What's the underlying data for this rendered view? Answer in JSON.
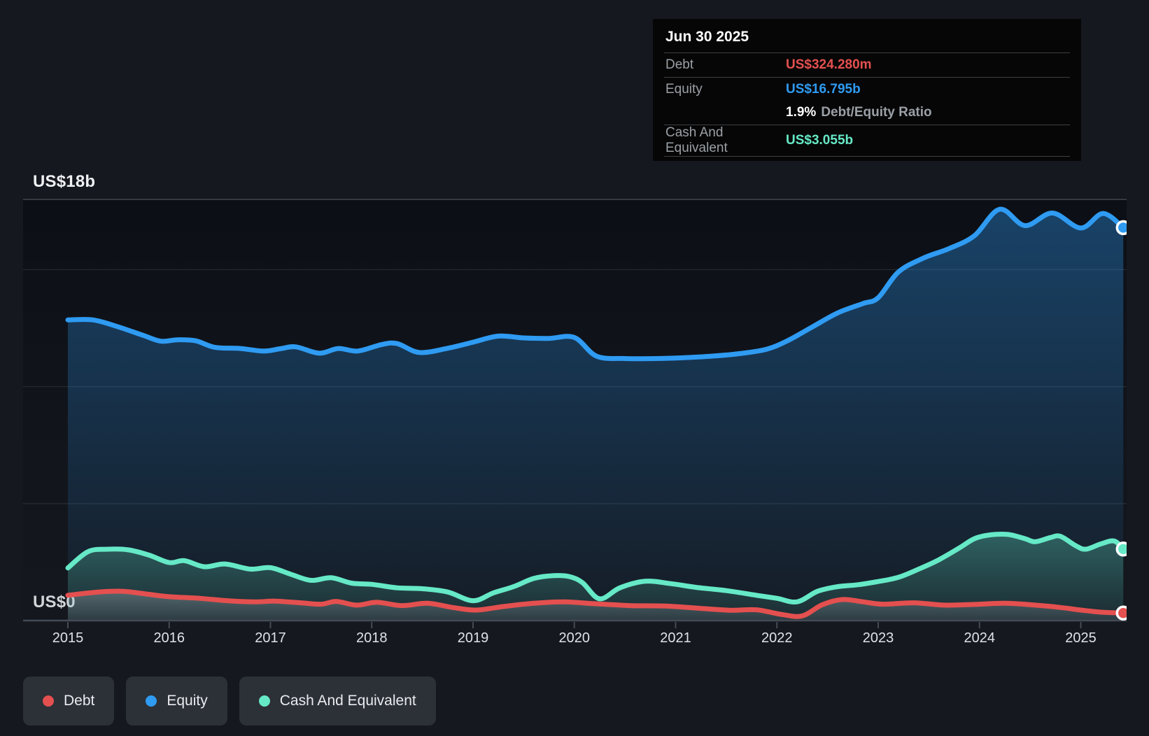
{
  "colors": {
    "debt": "#e4504f",
    "equity": "#2f9bf2",
    "cash": "#66e9c6",
    "page_bg": "#15181e",
    "tooltip_bg": "#060606",
    "grid_major": "#3e444c",
    "grid_minor": "#242a32",
    "axis_line": "#454b54",
    "label_gray": "#9aa0a6",
    "text_light": "#eef0f2"
  },
  "tooltip": {
    "date": "Jun 30 2025",
    "debt_label": "Debt",
    "debt_value": "US$324.280m",
    "equity_label": "Equity",
    "equity_value": "US$16.795b",
    "ratio_value": "1.9%",
    "ratio_label": "Debt/Equity Ratio",
    "cash_label": "Cash And Equivalent",
    "cash_value": "US$3.055b"
  },
  "axis": {
    "y_top_label": "US$18b",
    "y_zero_label": "US$0",
    "x_labels": [
      "2015",
      "2016",
      "2017",
      "2018",
      "2019",
      "2020",
      "2021",
      "2022",
      "2023",
      "2024",
      "2025"
    ]
  },
  "legend": [
    {
      "label": "Debt",
      "series": "debt"
    },
    {
      "label": "Equity",
      "series": "equity"
    },
    {
      "label": "Cash And Equivalent",
      "series": "cash"
    }
  ],
  "chart_data": {
    "type": "area",
    "x_unit": "fractional_year",
    "x_range": [
      2015.0,
      2025.42
    ],
    "ylabel": "US$ billions",
    "ylim": [
      0,
      18
    ],
    "gridlines_billions": [
      5,
      10,
      15
    ],
    "top_gridline_billions": 18,
    "grid": "horizontal-only",
    "legend_position": "bottom-left",
    "series": [
      {
        "name": "Equity",
        "color_key": "equity",
        "end_label": "US$16.795b",
        "points": [
          [
            2015.0,
            12.85
          ],
          [
            2015.25,
            12.85
          ],
          [
            2015.5,
            12.55
          ],
          [
            2015.75,
            12.18
          ],
          [
            2015.92,
            11.94
          ],
          [
            2016.08,
            12.0
          ],
          [
            2016.26,
            11.96
          ],
          [
            2016.45,
            11.68
          ],
          [
            2016.7,
            11.63
          ],
          [
            2016.93,
            11.52
          ],
          [
            2017.1,
            11.62
          ],
          [
            2017.25,
            11.7
          ],
          [
            2017.48,
            11.43
          ],
          [
            2017.67,
            11.63
          ],
          [
            2017.86,
            11.52
          ],
          [
            2018.1,
            11.8
          ],
          [
            2018.25,
            11.84
          ],
          [
            2018.47,
            11.46
          ],
          [
            2018.75,
            11.64
          ],
          [
            2019.0,
            11.9
          ],
          [
            2019.25,
            12.16
          ],
          [
            2019.5,
            12.08
          ],
          [
            2019.75,
            12.06
          ],
          [
            2020.0,
            12.1
          ],
          [
            2020.22,
            11.3
          ],
          [
            2020.5,
            11.2
          ],
          [
            2020.8,
            11.2
          ],
          [
            2021.05,
            11.23
          ],
          [
            2021.35,
            11.3
          ],
          [
            2021.65,
            11.42
          ],
          [
            2021.9,
            11.6
          ],
          [
            2022.1,
            11.95
          ],
          [
            2022.35,
            12.55
          ],
          [
            2022.6,
            13.15
          ],
          [
            2022.85,
            13.55
          ],
          [
            2023.0,
            13.8
          ],
          [
            2023.2,
            14.9
          ],
          [
            2023.45,
            15.5
          ],
          [
            2023.7,
            15.9
          ],
          [
            2023.95,
            16.45
          ],
          [
            2024.2,
            17.58
          ],
          [
            2024.45,
            16.88
          ],
          [
            2024.72,
            17.42
          ],
          [
            2025.0,
            16.78
          ],
          [
            2025.22,
            17.4
          ],
          [
            2025.42,
            16.795
          ]
        ]
      },
      {
        "name": "Cash And Equivalent",
        "color_key": "cash",
        "end_label": "US$3.055b",
        "points": [
          [
            2015.0,
            2.25
          ],
          [
            2015.2,
            2.95
          ],
          [
            2015.4,
            3.05
          ],
          [
            2015.6,
            3.02
          ],
          [
            2015.8,
            2.8
          ],
          [
            2016.0,
            2.48
          ],
          [
            2016.15,
            2.56
          ],
          [
            2016.35,
            2.3
          ],
          [
            2016.55,
            2.42
          ],
          [
            2016.8,
            2.2
          ],
          [
            2017.0,
            2.26
          ],
          [
            2017.2,
            1.98
          ],
          [
            2017.4,
            1.72
          ],
          [
            2017.6,
            1.83
          ],
          [
            2017.8,
            1.6
          ],
          [
            2018.0,
            1.55
          ],
          [
            2018.25,
            1.4
          ],
          [
            2018.5,
            1.36
          ],
          [
            2018.75,
            1.22
          ],
          [
            2019.0,
            0.85
          ],
          [
            2019.2,
            1.18
          ],
          [
            2019.4,
            1.45
          ],
          [
            2019.6,
            1.8
          ],
          [
            2019.8,
            1.92
          ],
          [
            2019.95,
            1.88
          ],
          [
            2020.08,
            1.62
          ],
          [
            2020.25,
            0.93
          ],
          [
            2020.45,
            1.4
          ],
          [
            2020.7,
            1.68
          ],
          [
            2020.95,
            1.58
          ],
          [
            2021.2,
            1.42
          ],
          [
            2021.5,
            1.28
          ],
          [
            2021.8,
            1.08
          ],
          [
            2022.0,
            0.95
          ],
          [
            2022.2,
            0.8
          ],
          [
            2022.4,
            1.25
          ],
          [
            2022.6,
            1.45
          ],
          [
            2022.8,
            1.53
          ],
          [
            2023.0,
            1.67
          ],
          [
            2023.2,
            1.85
          ],
          [
            2023.4,
            2.2
          ],
          [
            2023.6,
            2.6
          ],
          [
            2023.8,
            3.1
          ],
          [
            2023.95,
            3.5
          ],
          [
            2024.1,
            3.66
          ],
          [
            2024.28,
            3.68
          ],
          [
            2024.45,
            3.5
          ],
          [
            2024.55,
            3.37
          ],
          [
            2024.7,
            3.55
          ],
          [
            2024.8,
            3.6
          ],
          [
            2024.95,
            3.2
          ],
          [
            2025.05,
            3.05
          ],
          [
            2025.2,
            3.28
          ],
          [
            2025.33,
            3.4
          ],
          [
            2025.42,
            3.055
          ]
        ]
      },
      {
        "name": "Debt",
        "color_key": "debt",
        "end_label": "US$324.280m",
        "points": [
          [
            2015.0,
            1.08
          ],
          [
            2015.3,
            1.22
          ],
          [
            2015.55,
            1.25
          ],
          [
            2015.8,
            1.12
          ],
          [
            2016.0,
            1.02
          ],
          [
            2016.3,
            0.95
          ],
          [
            2016.6,
            0.84
          ],
          [
            2016.85,
            0.8
          ],
          [
            2017.05,
            0.83
          ],
          [
            2017.3,
            0.76
          ],
          [
            2017.5,
            0.7
          ],
          [
            2017.65,
            0.82
          ],
          [
            2017.85,
            0.66
          ],
          [
            2018.05,
            0.78
          ],
          [
            2018.3,
            0.64
          ],
          [
            2018.55,
            0.74
          ],
          [
            2018.8,
            0.56
          ],
          [
            2019.03,
            0.45
          ],
          [
            2019.3,
            0.6
          ],
          [
            2019.6,
            0.74
          ],
          [
            2019.9,
            0.8
          ],
          [
            2020.2,
            0.72
          ],
          [
            2020.55,
            0.64
          ],
          [
            2020.9,
            0.62
          ],
          [
            2021.25,
            0.52
          ],
          [
            2021.55,
            0.44
          ],
          [
            2021.8,
            0.46
          ],
          [
            2022.05,
            0.26
          ],
          [
            2022.25,
            0.2
          ],
          [
            2022.45,
            0.68
          ],
          [
            2022.65,
            0.9
          ],
          [
            2022.85,
            0.8
          ],
          [
            2023.05,
            0.7
          ],
          [
            2023.35,
            0.76
          ],
          [
            2023.65,
            0.66
          ],
          [
            2023.95,
            0.69
          ],
          [
            2024.25,
            0.74
          ],
          [
            2024.55,
            0.66
          ],
          [
            2024.8,
            0.56
          ],
          [
            2025.0,
            0.45
          ],
          [
            2025.2,
            0.36
          ],
          [
            2025.42,
            0.324
          ]
        ]
      }
    ]
  }
}
